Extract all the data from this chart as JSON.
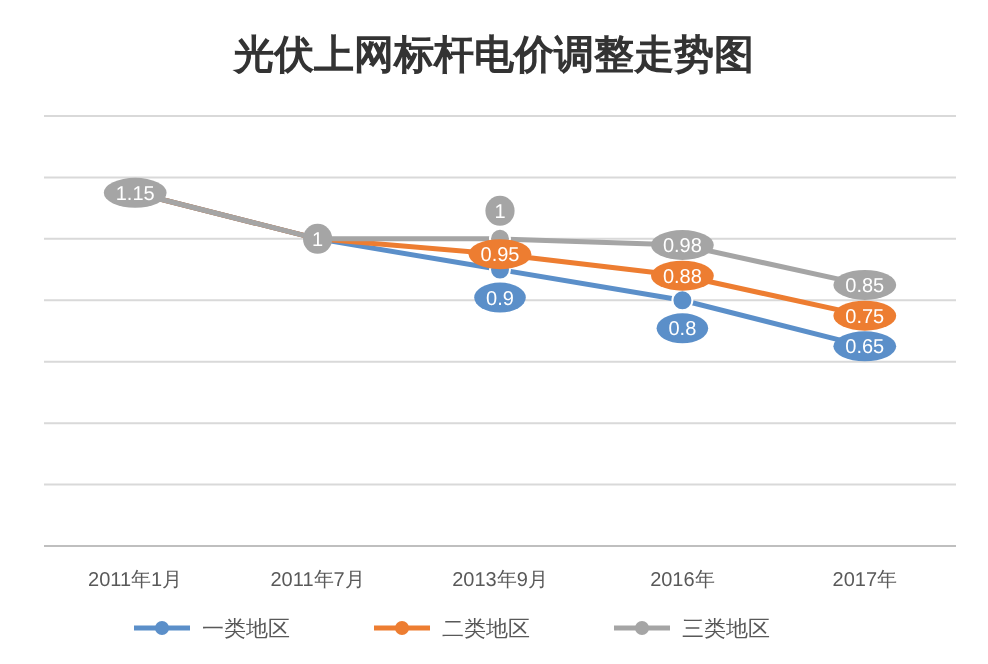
{
  "chart_data": {
    "type": "line",
    "title": "光伏上网标杆电价调整走势图",
    "categories": [
      "2011年1月",
      "2011年7月",
      "2013年9月",
      "2016年",
      "2017年"
    ],
    "ylim": [
      0,
      1.4
    ],
    "yticks": [
      {
        "value": 0,
        "label": null
      },
      {
        "value": 0.2,
        "label": null
      },
      {
        "value": 0.4,
        "label": null
      },
      {
        "value": 0.6,
        "label": null
      },
      {
        "value": 0.8,
        "label": null
      },
      {
        "value": 1,
        "label": null
      },
      {
        "value": 1.2,
        "label": null
      },
      {
        "value": 1.4,
        "label": null
      }
    ],
    "grid": "y",
    "legend": "bottom",
    "marker": "circle",
    "line_style": "solid",
    "series": [
      {
        "name": "一类地区",
        "color": "#5b8fc9",
        "values": [
          1.15,
          1,
          0.9,
          0.8,
          0.65
        ],
        "value_labels": [
          null,
          null,
          "0.9",
          "0.8",
          "0.65"
        ]
      },
      {
        "name": "二类地区",
        "color": "#ed7d31",
        "values": [
          1.15,
          1,
          0.95,
          0.88,
          0.75
        ],
        "value_labels": [
          null,
          null,
          "0.95",
          "0.88",
          "0.75"
        ]
      },
      {
        "name": "三类地区",
        "color": "#a5a5a5",
        "values": [
          1.15,
          1,
          1,
          0.98,
          0.85
        ],
        "value_labels": [
          "1.15",
          "1",
          "1",
          "0.98",
          "0.85"
        ]
      }
    ]
  }
}
